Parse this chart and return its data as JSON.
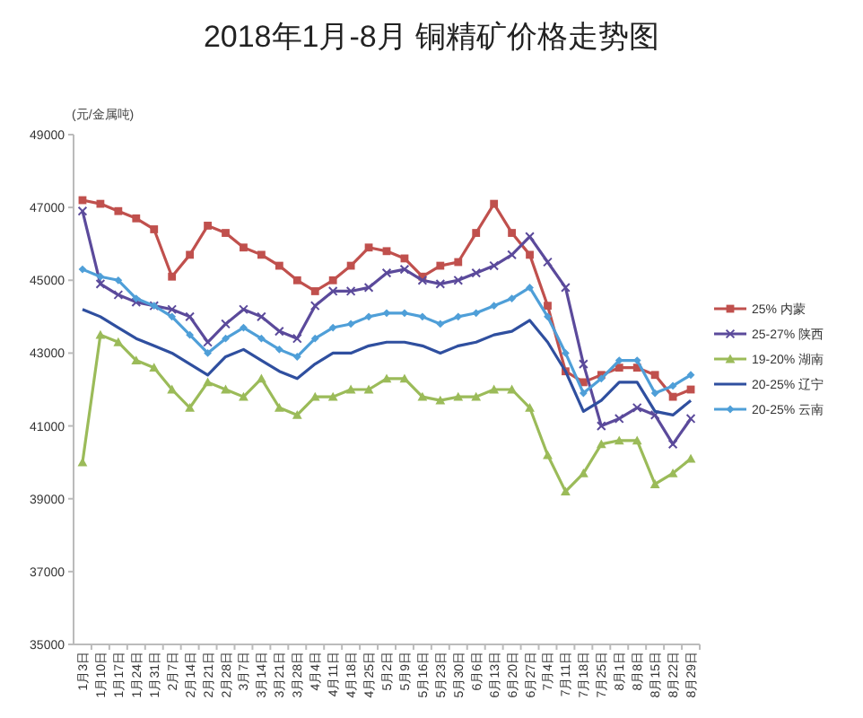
{
  "chart_data": {
    "type": "line",
    "title": "2018年1月-8月 铜精矿价格走势图",
    "ylabel": "(元/金属吨)",
    "categories": [
      "1月3日",
      "1月10日",
      "1月17日",
      "1月24日",
      "1月31日",
      "2月7日",
      "2月14日",
      "2月21日",
      "2月28日",
      "3月7日",
      "3月14日",
      "3月21日",
      "3月28日",
      "4月4日",
      "4月11日",
      "4月18日",
      "4月25日",
      "5月2日",
      "5月9日",
      "5月16日",
      "5月23日",
      "5月30日",
      "6月6日",
      "6月13日",
      "6月20日",
      "6月27日",
      "7月4日",
      "7月11日",
      "7月18日",
      "7月25日",
      "8月1日",
      "8月8日",
      "8月15日",
      "8月22日",
      "8月29日"
    ],
    "ylim": [
      35000,
      49000
    ],
    "yticks": [
      35000,
      37000,
      39000,
      41000,
      43000,
      45000,
      47000,
      49000
    ],
    "legend": "right",
    "series": [
      {
        "name": "25% 内蒙",
        "color": "#c0504d",
        "marker": "square",
        "values": [
          47200,
          47100,
          46900,
          46700,
          46400,
          45100,
          45700,
          46500,
          46300,
          45900,
          45700,
          45400,
          45000,
          44700,
          45000,
          45400,
          45900,
          45800,
          45600,
          45100,
          45400,
          45500,
          46300,
          47100,
          46300,
          45700,
          44300,
          42500,
          42200,
          42400,
          42600,
          42600,
          42400,
          41800,
          42000
        ]
      },
      {
        "name": "25-27% 陕西",
        "color": "#5b4a9b",
        "marker": "cross",
        "values": [
          46900,
          44900,
          44600,
          44400,
          44300,
          44200,
          44000,
          43300,
          43800,
          44200,
          44000,
          43600,
          43400,
          44300,
          44700,
          44700,
          44800,
          45200,
          45300,
          45000,
          44900,
          45000,
          45200,
          45400,
          45700,
          46200,
          45500,
          44800,
          42700,
          41000,
          41200,
          41500,
          41300,
          40500,
          41200
        ]
      },
      {
        "name": "19-20% 湖南",
        "color": "#9bbb59",
        "marker": "triangle",
        "values": [
          40000,
          43500,
          43300,
          42800,
          42600,
          42000,
          41500,
          42200,
          42000,
          41800,
          42300,
          41500,
          41300,
          41800,
          41800,
          42000,
          42000,
          42300,
          42300,
          41800,
          41700,
          41800,
          41800,
          42000,
          42000,
          41500,
          40200,
          39200,
          39700,
          40500,
          40600,
          40600,
          39400,
          39700,
          40100
        ]
      },
      {
        "name": "20-25% 辽宁",
        "color": "#2f4f9f",
        "marker": "none",
        "values": [
          44200,
          44000,
          43700,
          43400,
          43200,
          43000,
          42700,
          42400,
          42900,
          43100,
          42800,
          42500,
          42300,
          42700,
          43000,
          43000,
          43200,
          43300,
          43300,
          43200,
          43000,
          43200,
          43300,
          43500,
          43600,
          43900,
          43300,
          42500,
          41400,
          41700,
          42200,
          42200,
          41400,
          41300,
          41700
        ]
      },
      {
        "name": "20-25% 云南",
        "color": "#4f9fd8",
        "marker": "diamond",
        "values": [
          45300,
          45100,
          45000,
          44500,
          44300,
          44000,
          43500,
          43000,
          43400,
          43700,
          43400,
          43100,
          42900,
          43400,
          43700,
          43800,
          44000,
          44100,
          44100,
          44000,
          43800,
          44000,
          44100,
          44300,
          44500,
          44800,
          44000,
          43000,
          41900,
          42300,
          42800,
          42800,
          41900,
          42100,
          42400
        ]
      }
    ]
  }
}
